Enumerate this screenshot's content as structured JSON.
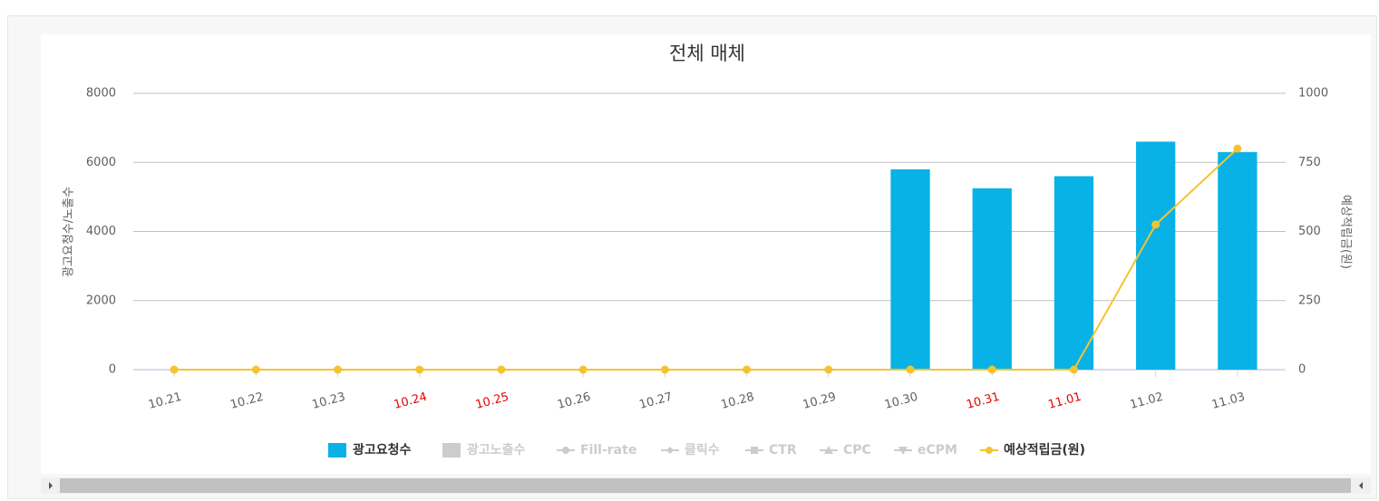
{
  "chart_data": {
    "type": "bar-line",
    "title": "전체 매체",
    "categories": [
      "10.21",
      "10.22",
      "10.23",
      "10.24",
      "10.25",
      "10.26",
      "10.27",
      "10.28",
      "10.29",
      "10.30",
      "10.31",
      "11.01",
      "11.02",
      "11.03"
    ],
    "category_colors": [
      "#606060",
      "#606060",
      "#606060",
      "#e60000",
      "#e60000",
      "#606060",
      "#606060",
      "#606060",
      "#606060",
      "#606060",
      "#e60000",
      "#e60000",
      "#606060",
      "#606060"
    ],
    "ylabel": "광고요청수/노출수",
    "y2label": "예상적립금(원)",
    "ylim": [
      0,
      8000
    ],
    "yticks": [
      0,
      2000,
      4000,
      6000,
      8000
    ],
    "y2lim": [
      0,
      1000
    ],
    "y2ticks": [
      0,
      250,
      500,
      750,
      1000
    ],
    "grid": true,
    "series": [
      {
        "name": "광고요청수",
        "type": "bar",
        "color": "#08b2e6",
        "values": [
          0,
          0,
          0,
          0,
          0,
          0,
          0,
          0,
          0,
          5800,
          5250,
          5600,
          6600,
          6300
        ]
      },
      {
        "name": "광고노출수",
        "type": "bar",
        "color": "#cccccc",
        "visible": false
      },
      {
        "name": "Fill-rate",
        "type": "line",
        "marker": "circle",
        "color": "#cccccc",
        "visible": false
      },
      {
        "name": "클릭수",
        "type": "line",
        "marker": "diamond",
        "color": "#cccccc",
        "visible": false
      },
      {
        "name": "CTR",
        "type": "line",
        "marker": "square",
        "color": "#cccccc",
        "visible": false
      },
      {
        "name": "CPC",
        "type": "line",
        "marker": "triangle",
        "color": "#cccccc",
        "visible": false
      },
      {
        "name": "eCPM",
        "type": "line",
        "marker": "triangle-down",
        "color": "#cccccc",
        "visible": false
      },
      {
        "name": "예상적립금(원)",
        "type": "line",
        "marker": "circle",
        "axis": "y2",
        "color": "#f5c332",
        "values": [
          0,
          0,
          0,
          0,
          0,
          0,
          0,
          0,
          0,
          0,
          0,
          0,
          525,
          800
        ]
      }
    ]
  }
}
